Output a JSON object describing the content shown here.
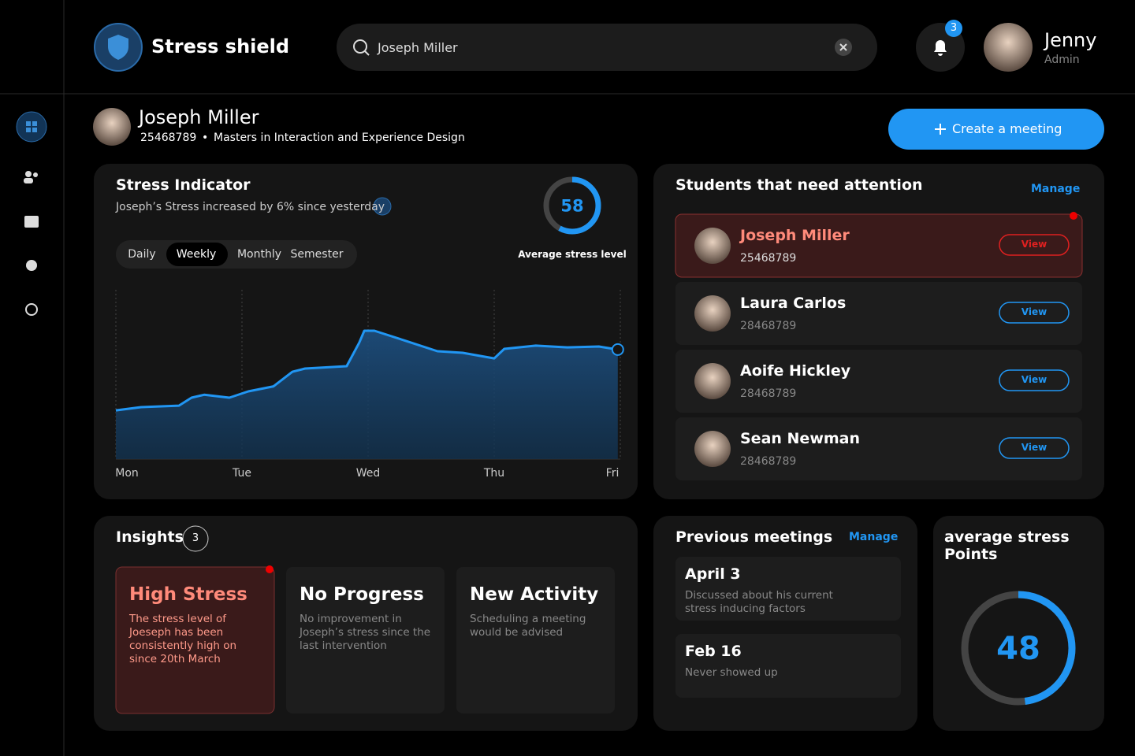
{
  "header": {
    "brand": "Stress shield",
    "search": "Joseph Miller",
    "notifications": "3",
    "user": {
      "name": "Jenny",
      "role": "Admin"
    }
  },
  "profile": {
    "name": "Joseph Miller",
    "id": "25468789",
    "separator": "•",
    "program": "Masters in Interaction and Experience Design",
    "action": "Create a meeting"
  },
  "stress_card": {
    "title": "Stress Indicator",
    "subtitle": "Joseph’s Stress increased by 6% since yesterday",
    "tabs": [
      "Daily",
      "Weekly",
      "Monthly",
      "Semester"
    ],
    "active_tab": 1,
    "gauge": {
      "value": 58,
      "lim": [
        0,
        100
      ],
      "label": "Average stress level"
    },
    "chart": {
      "type": "line",
      "color": "#2196f3",
      "x": [
        0,
        0.2,
        0.5,
        0.6,
        0.7,
        0.9,
        1.05,
        1.25,
        1.4,
        1.5,
        1.83,
        1.93,
        1.97,
        2.05,
        2.3,
        2.55,
        2.75,
        3.0,
        3.08,
        3.33,
        3.58,
        3.83,
        3.98
      ],
      "values": [
        28.8,
        30.7,
        31.6,
        36.3,
        38,
        36.3,
        40,
        43,
        51.6,
        53.5,
        54.9,
        68.8,
        75.8,
        75.8,
        69.8,
        63.7,
        62.8,
        59.5,
        65.1,
        67,
        66,
        66.5,
        64.7
      ],
      "xlim": [
        0,
        4
      ],
      "ylim": [
        0,
        100
      ],
      "xticks": [
        {
          "value": 0,
          "label": "Mon"
        },
        {
          "value": 1,
          "label": "Tue"
        },
        {
          "value": 2,
          "label": "Wed"
        },
        {
          "value": 3,
          "label": "Thu"
        },
        {
          "value": 4,
          "label": "Fri"
        }
      ],
      "grid": true
    }
  },
  "students": {
    "title": "Students that need attention",
    "manage": "Manage",
    "highlighted": 0,
    "items": [
      {
        "name": "Joseph Miller",
        "id": "25468789",
        "action": "View"
      },
      {
        "name": "Laura Carlos",
        "id": "28468789",
        "action": "View"
      },
      {
        "name": "Aoife Hickley",
        "id": "28468789",
        "action": "View"
      },
      {
        "name": "Sean Newman",
        "id": "28468789",
        "action": "View"
      }
    ]
  },
  "insights": {
    "title": "Insights",
    "count": "3",
    "highlighted": 0,
    "items": [
      {
        "title": "High Stress",
        "text": "The stress level of Joeseph has been consistently high on since 20th March"
      },
      {
        "title": "No Progress",
        "text": "No improvement in Joseph’s stress since the last intervention"
      },
      {
        "title": "New Activity",
        "text": "Scheduling a meeting would be advised"
      }
    ]
  },
  "meetings": {
    "title": "Previous meetings",
    "manage": "Manage",
    "items": [
      {
        "date": "April 3",
        "text": "Discussed about his current stress inducing factors"
      },
      {
        "date": "Feb 16",
        "text": "Never showed up"
      }
    ]
  },
  "average": {
    "title": "average stress Points",
    "value": 48,
    "lim": [
      0,
      100
    ]
  }
}
